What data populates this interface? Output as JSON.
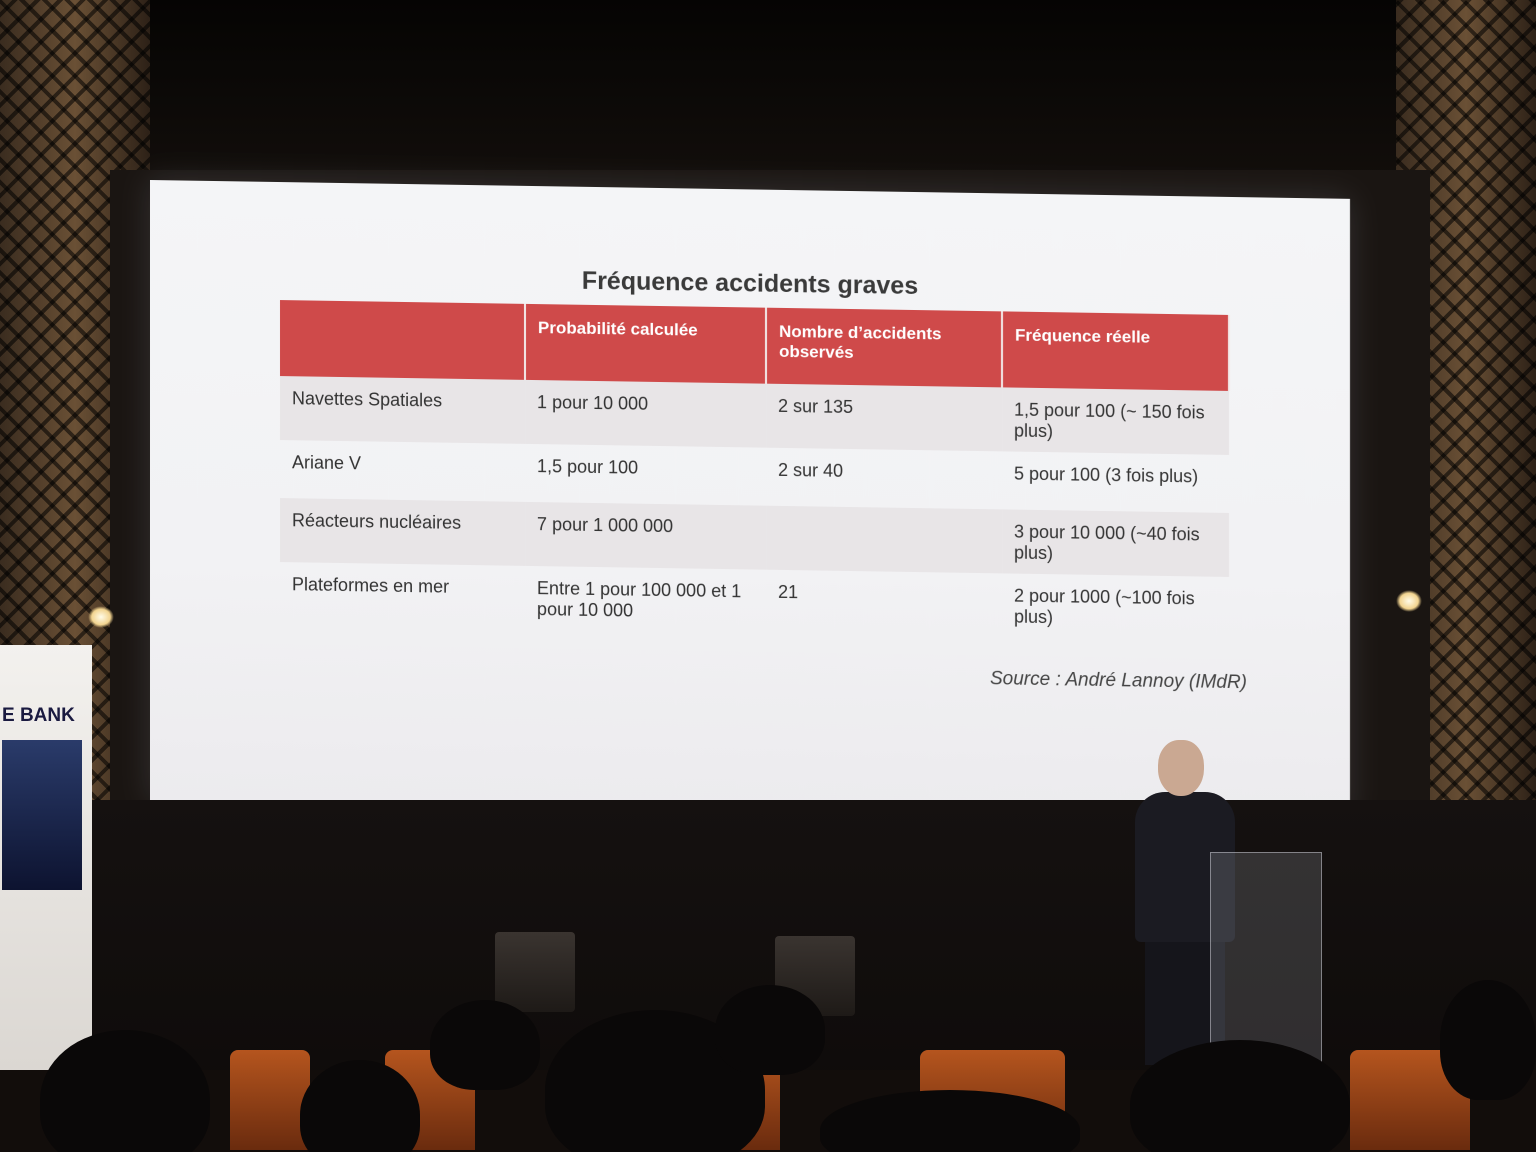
{
  "slide": {
    "title": "Fréquence accidents graves",
    "headers": [
      "",
      "Probabilité calculée",
      "Nombre d’accidents observés",
      "Fréquence réelle"
    ],
    "rows": [
      [
        "Navettes Spatiales",
        "1 pour 10 000",
        "2 sur 135",
        "1,5 pour 100 (~ 150 fois plus)"
      ],
      [
        "Ariane V",
        "1,5 pour 100",
        "2 sur 40",
        "5 pour 100 (3 fois plus)"
      ],
      [
        "Réacteurs nucléaires",
        "7 pour 1 000 000",
        "",
        "3 pour 10 000 (~40 fois plus)"
      ],
      [
        "Plateformes en mer",
        "Entre 1 pour 100 000 et 1 pour 10 000",
        "21",
        "2 pour 1000 (~100 fois plus)"
      ]
    ],
    "source": "Source : André Lannoy (IMdR)",
    "header_color": "#cf4a4a"
  },
  "banner": {
    "text": "E BANK"
  }
}
